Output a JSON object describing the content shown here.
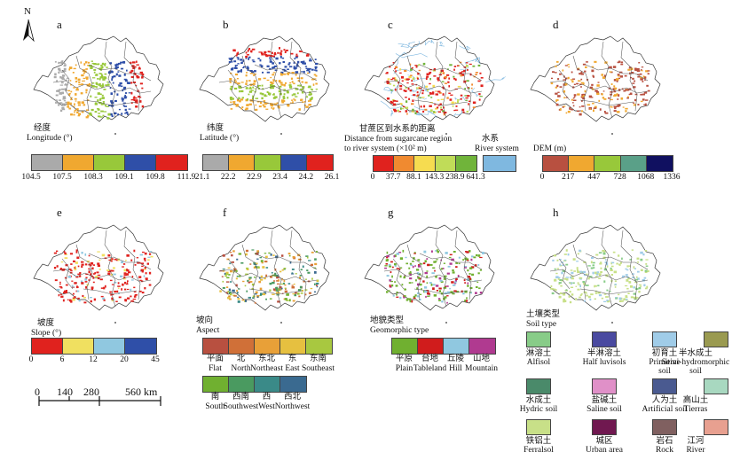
{
  "panels": {
    "a": "a",
    "b": "b",
    "c": "c",
    "d": "d",
    "e": "e",
    "f": "f",
    "g": "g",
    "h": "h"
  },
  "north": "N",
  "longitude": {
    "title_cn": "经度",
    "title_en": "Longitude (°)",
    "colors": [
      "#aaaaaa",
      "#f0a830",
      "#98c83a",
      "#2f4fa8",
      "#e0221e"
    ],
    "ticks": [
      "104.5",
      "107.5",
      "108.3",
      "109.1",
      "109.8",
      "111.9"
    ]
  },
  "latitude": {
    "title_cn": "纬度",
    "title_en": "Latitude (°)",
    "colors": [
      "#aaaaaa",
      "#f0a830",
      "#98c83a",
      "#2f4fa8",
      "#e0221e"
    ],
    "ticks": [
      "21.1",
      "22.2",
      "22.9",
      "23.4",
      "24.2",
      "26.1"
    ]
  },
  "distance": {
    "title_cn": "甘蔗区到水系的距离",
    "title_en_1": "Distance from sugarcane region",
    "title_en_2": "to river system (×10² m)",
    "river_cn": "水系",
    "river_en": "River system",
    "colors": [
      "#e0221e",
      "#f08a30",
      "#f6dc50",
      "#c0dc58",
      "#70b43a"
    ],
    "river_color": "#7fb8e0",
    "ticks": [
      "0",
      "37.7",
      "88.1",
      "143.3",
      "238.9",
      "641.3"
    ]
  },
  "dem": {
    "title": "DEM (m)",
    "colors": [
      "#b85040",
      "#f0a830",
      "#98c83a",
      "#5aa088",
      "#101060"
    ],
    "ticks": [
      "0",
      "217",
      "447",
      "728",
      "1068",
      "1336"
    ]
  },
  "slope": {
    "title_cn": "坡度",
    "title_en": "Slope (°)",
    "colors": [
      "#e0221e",
      "#f0e060",
      "#90c8e0",
      "#2f4fa8"
    ],
    "ticks": [
      "0",
      "6",
      "12",
      "20",
      "45"
    ]
  },
  "aspect": {
    "title_cn": "坡向",
    "title_en": "Aspect",
    "row1_colors": [
      "#b85040",
      "#d07038",
      "#e8a038",
      "#e6c040",
      "#a8c840"
    ],
    "row1_cn": [
      "平面",
      "北",
      "东北",
      "东",
      "东南"
    ],
    "row1_en": [
      "Flat",
      "North",
      "Northeast",
      "East",
      "Southeast"
    ],
    "row2_colors": [
      "#70b030",
      "#4a9a60",
      "#3a8a88",
      "#3a6a90"
    ],
    "row2_cn": [
      "南",
      "西南",
      "西",
      "西北"
    ],
    "row2_en": [
      "South",
      "Southwest",
      "West",
      "Northwest"
    ]
  },
  "geomorph": {
    "title_cn": "地貌类型",
    "title_en": "Geomorphic type",
    "colors": [
      "#70b030",
      "#d01c1c",
      "#90c8e0",
      "#b03a90"
    ],
    "cn": [
      "平原",
      "台地",
      "丘陵",
      "山地"
    ],
    "en": [
      "Plain",
      "Tableland",
      "Hill",
      "Mountain"
    ]
  },
  "soil": {
    "title_cn": "土壤类型",
    "title_en": "Soil type",
    "items": [
      {
        "cn": "淋溶土",
        "en": "Alfisol",
        "en2": "",
        "color": "#88cc88"
      },
      {
        "cn": "半淋溶土",
        "en": "Half luvisols",
        "en2": "",
        "color": "#4a4aa0"
      },
      {
        "cn": "初育土",
        "en": "Primitive",
        "en2": "soil",
        "color": "#a0cce8"
      },
      {
        "cn": "半水成土",
        "en": "Semi-hydromorphic",
        "en2": "soil",
        "color": "#9a9a50"
      },
      {
        "cn": "水成土",
        "en": "Hydric soil",
        "en2": "",
        "color": "#4a8a6a"
      },
      {
        "cn": "盐碱土",
        "en": "Saline soil",
        "en2": "",
        "color": "#e090c8"
      },
      {
        "cn": "人为土",
        "en": "Artificial soil",
        "en2": "",
        "color": "#4a5a90"
      },
      {
        "cn": "高山土",
        "en": "Tierras",
        "en2": "",
        "color": "#a8d8c0"
      },
      {
        "cn": "铁铝土",
        "en": "Ferralsol",
        "en2": "",
        "color": "#c8e088"
      },
      {
        "cn": "城区",
        "en": "Urban area",
        "en2": "",
        "color": "#701850"
      },
      {
        "cn": "岩石",
        "en": "Rock",
        "en2": "",
        "color": "#806060"
      },
      {
        "cn": "江河",
        "en": "River",
        "en2": "",
        "color": "#e8a090"
      }
    ]
  },
  "scale": {
    "ticks": [
      "0",
      "140",
      "280",
      "560 km"
    ]
  }
}
